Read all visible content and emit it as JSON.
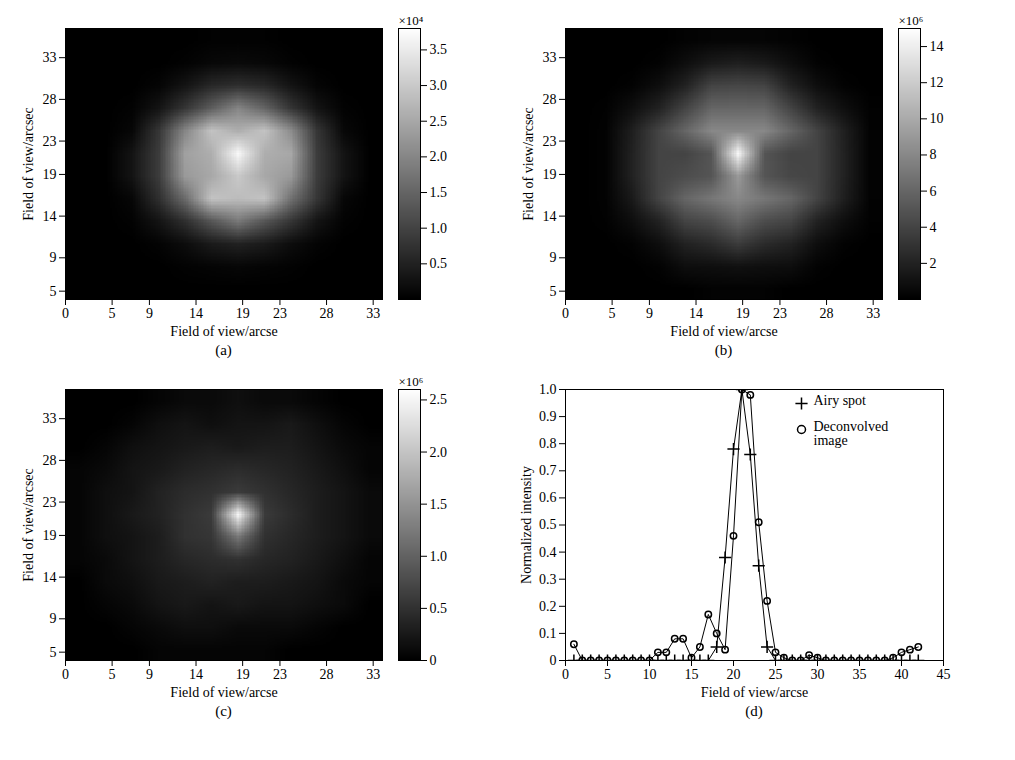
{
  "chart_data": [
    {
      "type": "heatmap",
      "caption": "(a)",
      "xlabel": "Field of view/arcse",
      "ylabel": "Field of view/arcsec",
      "xlim": [
        0,
        34
      ],
      "ylim": [
        4,
        36.5
      ],
      "xticks": [
        0,
        5,
        9,
        14,
        19,
        23,
        28,
        33
      ],
      "yticks": [
        5,
        9,
        14,
        19,
        23,
        28,
        33
      ],
      "cells": [
        [
          0,
          0,
          0,
          0,
          0,
          0.03,
          0.03,
          0.03,
          0,
          0,
          0,
          0
        ],
        [
          0,
          0,
          0,
          0,
          0.05,
          0.12,
          0.15,
          0.12,
          0.05,
          0,
          0,
          0
        ],
        [
          0,
          0,
          0,
          0.08,
          0.3,
          0.6,
          0.7,
          0.6,
          0.3,
          0.08,
          0,
          0
        ],
        [
          0,
          0,
          0.05,
          0.3,
          0.8,
          1.4,
          2.0,
          1.5,
          0.8,
          0.3,
          0.05,
          0
        ],
        [
          0,
          0,
          0.1,
          0.8,
          2.0,
          2.9,
          2.6,
          2.9,
          2.1,
          0.8,
          0.12,
          0
        ],
        [
          0,
          0,
          0.3,
          0.9,
          2.4,
          2.6,
          3.7,
          2.6,
          2.5,
          0.9,
          0.3,
          0
        ],
        [
          0,
          0,
          0.3,
          0.9,
          2.3,
          2.5,
          3.0,
          2.5,
          2.3,
          0.9,
          0.3,
          0
        ],
        [
          0,
          0,
          0.1,
          0.7,
          1.6,
          2.9,
          2.8,
          2.9,
          1.7,
          0.8,
          0.1,
          0
        ],
        [
          0,
          0,
          0.05,
          0.3,
          0.7,
          1.3,
          1.8,
          1.3,
          0.8,
          0.3,
          0.05,
          0
        ],
        [
          0,
          0,
          0,
          0.06,
          0.2,
          0.4,
          0.5,
          0.4,
          0.2,
          0.06,
          0,
          0
        ],
        [
          0,
          0,
          0,
          0,
          0.04,
          0.08,
          0.1,
          0.08,
          0.04,
          0,
          0,
          0
        ],
        [
          0,
          0,
          0,
          0,
          0,
          0,
          0,
          0,
          0,
          0,
          0,
          0
        ]
      ],
      "colorbar": {
        "label": "×10⁴",
        "range": [
          0,
          3.8
        ],
        "ticks": [
          0.5,
          {
            "value": 1,
            "label": "1.0"
          },
          1.5,
          {
            "value": 2,
            "label": "2.0"
          },
          2.5,
          {
            "value": 3,
            "label": "3.0"
          },
          3.5
        ]
      }
    },
    {
      "type": "heatmap",
      "caption": "(b)",
      "xlabel": "Field of view/arcse",
      "ylabel": "Field of view/arcsec",
      "xlim": [
        0,
        34
      ],
      "ylim": [
        4,
        36.5
      ],
      "xticks": [
        0,
        5,
        9,
        14,
        19,
        23,
        28,
        33
      ],
      "yticks": [
        5,
        9,
        14,
        19,
        23,
        28,
        33
      ],
      "cells": [
        [
          0,
          0,
          0,
          0,
          0.2,
          0.3,
          0.3,
          0.3,
          0.2,
          0,
          0,
          0
        ],
        [
          0,
          0,
          0,
          0.2,
          0.8,
          1.5,
          1.8,
          1.5,
          0.8,
          0.2,
          0,
          0
        ],
        [
          0,
          0,
          0.2,
          0.8,
          2.0,
          4.0,
          4.2,
          4.0,
          2.0,
          0.8,
          0.2,
          0
        ],
        [
          0,
          0.1,
          0.9,
          2.0,
          4.0,
          6.0,
          6.0,
          6.0,
          4.0,
          2.0,
          0.9,
          0.1
        ],
        [
          0,
          0.2,
          1.8,
          4.0,
          6.0,
          8.0,
          8.0,
          8.0,
          6.0,
          4.0,
          1.9,
          0.2
        ],
        [
          0,
          0.2,
          2.0,
          4.0,
          4.0,
          5.0,
          14.5,
          5.0,
          4.0,
          4.0,
          2.0,
          0.2
        ],
        [
          0,
          0.2,
          2.0,
          4.0,
          4.5,
          5.0,
          9.0,
          5.0,
          4.2,
          4.0,
          2.0,
          0.2
        ],
        [
          0,
          0.2,
          1.5,
          4.0,
          6.0,
          7.0,
          8.0,
          7.0,
          6.0,
          4.0,
          1.8,
          0.2
        ],
        [
          0,
          0.1,
          0.8,
          2.0,
          4.0,
          4.5,
          6.0,
          4.5,
          4.0,
          2.0,
          0.8,
          0.1
        ],
        [
          0,
          0,
          0.2,
          0.8,
          2.0,
          2.5,
          3.5,
          2.5,
          2.0,
          0.8,
          0.2,
          0
        ],
        [
          0,
          0,
          0,
          0.2,
          0.8,
          0.9,
          1.0,
          0.9,
          0.8,
          0.2,
          0,
          0
        ],
        [
          0,
          0,
          0,
          0,
          0,
          0.15,
          0.2,
          0.15,
          0,
          0,
          0,
          0
        ]
      ],
      "colorbar": {
        "label": "×10⁶",
        "range": [
          0,
          15
        ],
        "ticks": [
          2,
          4,
          6,
          8,
          10,
          12,
          14
        ]
      }
    },
    {
      "type": "heatmap",
      "caption": "(c)",
      "xlabel": "Field of view/arcse",
      "ylabel": "Field of view/arcsec",
      "xlim": [
        0,
        34
      ],
      "ylim": [
        4,
        36.5
      ],
      "xticks": [
        0,
        5,
        9,
        14,
        19,
        23,
        28,
        33
      ],
      "yticks": [
        5,
        9,
        14,
        19,
        23,
        28,
        33
      ],
      "cells": [
        [
          0,
          0,
          0,
          0.05,
          0.1,
          0.1,
          0.15,
          0.1,
          0.1,
          0.05,
          0,
          0
        ],
        [
          0,
          0,
          0.05,
          0.15,
          0.2,
          0.15,
          0.2,
          0.2,
          0.25,
          0.15,
          0.05,
          0
        ],
        [
          0,
          0.05,
          0.15,
          0.2,
          0.25,
          0.3,
          0.25,
          0.3,
          0.3,
          0.2,
          0.1,
          0.05
        ],
        [
          0.05,
          0.1,
          0.2,
          0.25,
          0.35,
          0.4,
          0.45,
          0.4,
          0.35,
          0.25,
          0.15,
          0.05
        ],
        [
          0.05,
          0.15,
          0.2,
          0.35,
          0.45,
          0.5,
          0.6,
          0.5,
          0.4,
          0.3,
          0.2,
          0.1
        ],
        [
          0.05,
          0.15,
          0.25,
          0.35,
          0.5,
          0.6,
          2.5,
          0.6,
          0.45,
          0.3,
          0.2,
          0.1
        ],
        [
          0.05,
          0.15,
          0.2,
          0.3,
          0.5,
          0.55,
          1.2,
          0.5,
          0.4,
          0.3,
          0.2,
          0.1
        ],
        [
          0.05,
          0.1,
          0.2,
          0.3,
          0.4,
          0.45,
          0.5,
          0.4,
          0.35,
          0.25,
          0.15,
          0.05
        ],
        [
          0,
          0.1,
          0.15,
          0.25,
          0.3,
          0.35,
          0.3,
          0.3,
          0.25,
          0.2,
          0.1,
          0.05
        ],
        [
          0,
          0.05,
          0.1,
          0.2,
          0.25,
          0.2,
          0.25,
          0.2,
          0.2,
          0.15,
          0.1,
          0
        ],
        [
          0,
          0,
          0.05,
          0.1,
          0.15,
          0.15,
          0.1,
          0.1,
          0.1,
          0.05,
          0,
          0
        ],
        [
          0,
          0,
          0,
          0.05,
          0.05,
          0.05,
          0.05,
          0.05,
          0,
          0,
          0,
          0
        ]
      ],
      "colorbar": {
        "label": "×10⁶",
        "range": [
          0,
          2.6
        ],
        "ticks": [
          0,
          0.5,
          {
            "value": 1,
            "label": "1.0"
          },
          1.5,
          {
            "value": 2,
            "label": "2.0"
          },
          2.5
        ]
      }
    },
    {
      "type": "line",
      "caption": "(d)",
      "xlabel": "Field of view/arcse",
      "ylabel": "Normalized intensity",
      "xlim": [
        0,
        45
      ],
      "ylim": [
        0,
        1
      ],
      "xticks": [
        0,
        5,
        10,
        15,
        20,
        25,
        30,
        35,
        40,
        45
      ],
      "yticks": [
        0,
        0.1,
        0.2,
        0.3,
        0.4,
        0.5,
        0.6,
        0.7,
        0.8,
        0.9,
        {
          "value": 1,
          "label": "1.0"
        }
      ],
      "legend": "top-right",
      "x": [
        1,
        2,
        3,
        4,
        5,
        6,
        7,
        8,
        9,
        10,
        11,
        12,
        13,
        14,
        15,
        16,
        17,
        18,
        19,
        20,
        21,
        22,
        23,
        24,
        25,
        26,
        27,
        28,
        29,
        30,
        31,
        32,
        33,
        34,
        35,
        36,
        37,
        38,
        39,
        40,
        41,
        42
      ],
      "series": [
        {
          "name": "Airy spot",
          "color": "#000000",
          "marker": "plus",
          "values": [
            0,
            0,
            0,
            0,
            0,
            0,
            0,
            0,
            0,
            0,
            0,
            0,
            0,
            0,
            0,
            0,
            0,
            0.05,
            0.38,
            0.78,
            1.0,
            0.76,
            0.35,
            0.05,
            0,
            0,
            0,
            0,
            0,
            0,
            0,
            0,
            0,
            0,
            0,
            0,
            0,
            0,
            0,
            0,
            0,
            0
          ]
        },
        {
          "name": "Deconvolved image",
          "color": "#000000",
          "marker": "circle",
          "values": [
            0.06,
            0,
            0,
            0,
            0,
            0,
            0,
            0,
            0,
            0,
            0.03,
            0.03,
            0.08,
            0.08,
            0.01,
            0.05,
            0.17,
            0.1,
            0.04,
            0.46,
            1.0,
            0.98,
            0.51,
            0.22,
            0.03,
            0.01,
            0,
            0,
            0.02,
            0.01,
            0,
            0,
            0,
            0,
            0,
            0,
            0,
            0,
            0.01,
            0.03,
            0.04,
            0.05
          ]
        }
      ]
    }
  ]
}
